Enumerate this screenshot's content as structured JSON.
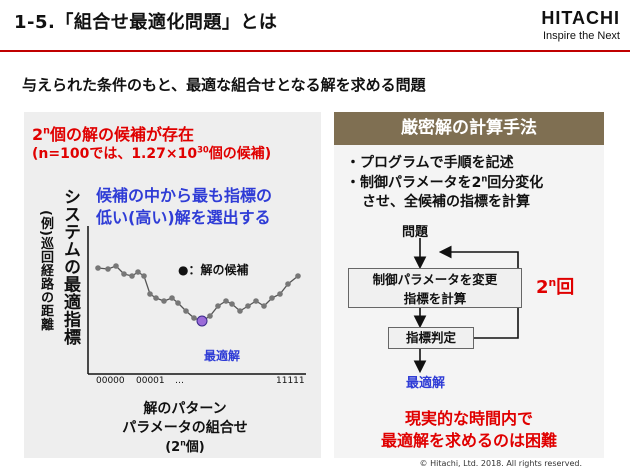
{
  "header": {
    "title": "1-5.「組合せ最適化問題」とは",
    "logo_brand": "HITACHI",
    "logo_tagline": "Inspire the Next"
  },
  "subtitle": "与えられた条件のもと、最適な組合せとなる解を求める問題",
  "left_panel": {
    "candidate_base": "2",
    "candidate_sup": "n",
    "candidate_rest": "個の解の候補が存在",
    "example_pre": "(n=100では、1.27×10",
    "example_sup": "30",
    "example_post": "個の候補)",
    "select_line1": "候補の中から最も指標の",
    "select_line2": "低い(高い)解を選出する",
    "y_axis_main": "システムの最適指標",
    "y_axis_sub": "(例)巡回経路の距離",
    "legend": "●：解の候補",
    "optimal_label": "最適解",
    "x_ticks": [
      "00000",
      "00001",
      "…",
      "11111"
    ],
    "x_axis_line1": "解のパターン",
    "x_axis_line2": "パラメータの組合せ",
    "x_axis_pre": "(2",
    "x_axis_sup": "n",
    "x_axis_post": "個)"
  },
  "right_panel": {
    "header": "厳密解の計算手法",
    "bullet1": "・プログラムで手順を記述",
    "bullet2_pre": "・制御パラメータを2",
    "bullet2_sup": "n",
    "bullet2_post": "回分変化",
    "bullet2_cont": "させ、全候補の指標を計算",
    "flow_problem": "問題",
    "flow_box1_line1": "制御パラメータを変更",
    "flow_box1_line2": "指標を計算",
    "flow_box2": "指標判定",
    "flow_result": "最適解",
    "loop_base": "2",
    "loop_sup": "n",
    "loop_rest": "回",
    "conclusion_line1": "現実的な時間内で",
    "conclusion_line2": "最適解を求めるのは困難"
  },
  "footer": {
    "copyright": "© Hitachi, Ltd. 2018. All rights reserved."
  },
  "colors": {
    "accent_red": "#e00000",
    "accent_blue": "#2f3cd6",
    "header_brown": "#7f6f52",
    "optimal_point": "#9b6bd8"
  },
  "curve_points": [
    [
      0.0,
      0.78
    ],
    [
      0.05,
      0.77
    ],
    [
      0.09,
      0.8
    ],
    [
      0.13,
      0.72
    ],
    [
      0.17,
      0.7
    ],
    [
      0.2,
      0.74
    ],
    [
      0.23,
      0.7
    ],
    [
      0.26,
      0.52
    ],
    [
      0.29,
      0.48
    ],
    [
      0.33,
      0.45
    ],
    [
      0.37,
      0.48
    ],
    [
      0.4,
      0.43
    ],
    [
      0.44,
      0.35
    ],
    [
      0.48,
      0.28
    ],
    [
      0.52,
      0.25
    ],
    [
      0.56,
      0.3
    ],
    [
      0.6,
      0.4
    ],
    [
      0.64,
      0.45
    ],
    [
      0.67,
      0.42
    ],
    [
      0.71,
      0.35
    ],
    [
      0.75,
      0.4
    ],
    [
      0.79,
      0.45
    ],
    [
      0.83,
      0.4
    ],
    [
      0.87,
      0.48
    ],
    [
      0.91,
      0.52
    ],
    [
      0.95,
      0.62
    ],
    [
      1.0,
      0.7
    ]
  ],
  "optimal_index": 14
}
